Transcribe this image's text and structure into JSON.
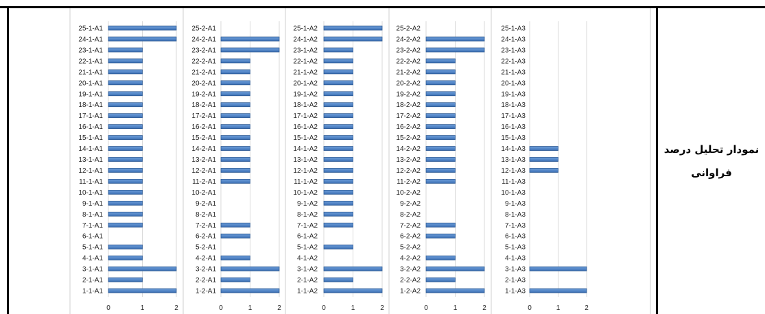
{
  "label": {
    "line1": "نمودار تحلیل درصد",
    "line2": "فراوانی"
  },
  "colors": {
    "bar_fill_top": "#6fa0dc",
    "bar_fill_bottom": "#3c6fb3",
    "bar_edge": "#2f5b94",
    "grid": "#d9d9d9",
    "panel_separator": "#cfcfcf",
    "frame": "#000000"
  },
  "chart_data": [
    {
      "type": "bar",
      "orientation": "horizontal",
      "categories": [
        "1-1-A1",
        "2-1-A1",
        "3-1-A1",
        "4-1-A1",
        "5-1-A1",
        "6-1-A1",
        "7-1-A1",
        "8-1-A1",
        "9-1-A1",
        "10-1-A1",
        "11-1-A1",
        "12-1-A1",
        "13-1-A1",
        "14-1-A1",
        "15-1-A1",
        "16-1-A1",
        "17-1-A1",
        "18-1-A1",
        "19-1-A1",
        "20-1-A1",
        "21-1-A1",
        "22-1-A1",
        "23-1-A1",
        "24-1-A1",
        "25-1-A1"
      ],
      "values": [
        2,
        1,
        2,
        1,
        1,
        0,
        1,
        1,
        1,
        1,
        1,
        1,
        1,
        1,
        1,
        1,
        1,
        1,
        1,
        1,
        1,
        1,
        1,
        2,
        2
      ],
      "xlim": [
        0,
        2
      ],
      "xticks": [
        0,
        1,
        2
      ],
      "grid": true
    },
    {
      "type": "bar",
      "orientation": "horizontal",
      "categories": [
        "1-2-A1",
        "2-2-A1",
        "3-2-A1",
        "4-2-A1",
        "5-2-A1",
        "6-2-A1",
        "7-2-A1",
        "8-2-A1",
        "9-2-A1",
        "10-2-A1",
        "11-2-A1",
        "12-2-A1",
        "13-2-A1",
        "14-2-A1",
        "15-2-A1",
        "16-2-A1",
        "17-2-A1",
        "18-2-A1",
        "19-2-A1",
        "20-2-A1",
        "21-2-A1",
        "22-2-A1",
        "23-2-A1",
        "24-2-A1",
        "25-2-A1"
      ],
      "values": [
        2,
        1,
        2,
        1,
        0,
        1,
        1,
        0,
        0,
        0,
        1,
        1,
        1,
        1,
        1,
        1,
        1,
        1,
        1,
        1,
        1,
        1,
        2,
        2,
        0
      ],
      "xlim": [
        0,
        2
      ],
      "xticks": [
        0,
        1,
        2
      ],
      "grid": true
    },
    {
      "type": "bar",
      "orientation": "horizontal",
      "categories": [
        "1-1-A2",
        "2-1-A2",
        "3-1-A2",
        "4-1-A2",
        "5-1-A2",
        "6-1-A2",
        "7-1-A2",
        "8-1-A2",
        "9-1-A2",
        "10-1-A2",
        "11-1-A2",
        "12-1-A2",
        "13-1-A2",
        "14-1-A2",
        "15-1-A2",
        "16-1-A2",
        "17-1-A2",
        "18-1-A2",
        "19-1-A2",
        "20-1-A2",
        "21-1-A2",
        "22-1-A2",
        "23-1-A2",
        "24-1-A2",
        "25-1-A2"
      ],
      "values": [
        2,
        1,
        2,
        0,
        1,
        0,
        1,
        1,
        1,
        1,
        1,
        1,
        1,
        1,
        1,
        1,
        1,
        1,
        1,
        1,
        1,
        1,
        1,
        2,
        2
      ],
      "xlim": [
        0,
        2
      ],
      "xticks": [
        0,
        1,
        2
      ],
      "grid": true
    },
    {
      "type": "bar",
      "orientation": "horizontal",
      "categories": [
        "1-2-A2",
        "2-2-A2",
        "3-2-A2",
        "4-2-A2",
        "5-2-A2",
        "6-2-A2",
        "7-2-A2",
        "8-2-A2",
        "9-2-A2",
        "10-2-A2",
        "11-2-A2",
        "12-2-A2",
        "13-2-A2",
        "14-2-A2",
        "15-2-A2",
        "16-2-A2",
        "17-2-A2",
        "18-2-A2",
        "19-2-A2",
        "20-2-A2",
        "21-2-A2",
        "22-2-A2",
        "23-2-A2",
        "24-2-A2",
        "25-2-A2"
      ],
      "values": [
        2,
        1,
        2,
        1,
        0,
        1,
        1,
        0,
        0,
        0,
        1,
        1,
        1,
        1,
        1,
        1,
        1,
        1,
        1,
        1,
        1,
        1,
        2,
        2,
        0
      ],
      "xlim": [
        0,
        2
      ],
      "xticks": [
        0,
        1,
        2
      ],
      "grid": true
    },
    {
      "type": "bar",
      "orientation": "horizontal",
      "categories": [
        "1-1-A3",
        "2-1-A3",
        "3-1-A3",
        "4-1-A3",
        "5-1-A3",
        "6-1-A3",
        "7-1-A3",
        "8-1-A3",
        "9-1-A3",
        "10-1-A3",
        "11-1-A3",
        "12-1-A3",
        "13-1-A3",
        "14-1-A3",
        "15-1-A3",
        "16-1-A3",
        "17-1-A3",
        "18-1-A3",
        "19-1-A3",
        "20-1-A3",
        "21-1-A3",
        "22-1-A3",
        "23-1-A3",
        "24-1-A3",
        "25-1-A3"
      ],
      "values": [
        2,
        0,
        2,
        0,
        0,
        0,
        0,
        0,
        0,
        0,
        0,
        1,
        1,
        1,
        0,
        0,
        0,
        0,
        0,
        0,
        0,
        0,
        0,
        0,
        0
      ],
      "xlim": [
        0,
        2
      ],
      "xticks": [
        0,
        1,
        2
      ],
      "grid": true
    }
  ]
}
